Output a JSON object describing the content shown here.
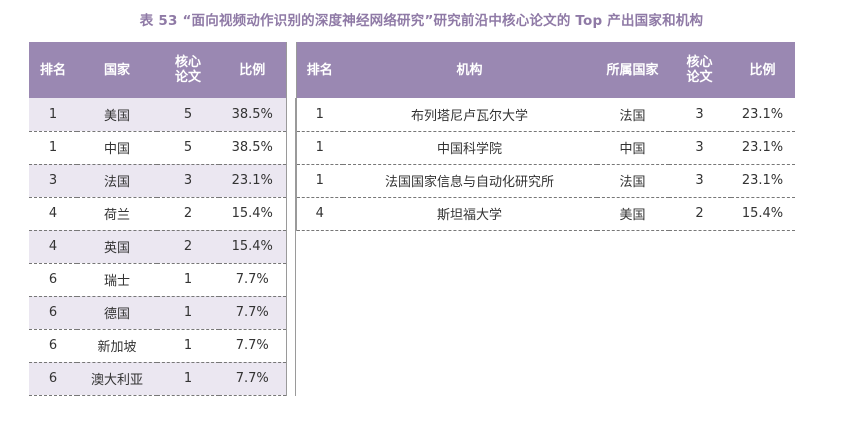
{
  "title": "表 53 “面向视频动作识别的深度神经网络研究”研究前沿中核心论文的 Top 产出国家和机构",
  "country_table": {
    "headers": [
      "排名",
      "国家",
      "核心论文",
      "比例"
    ],
    "rows": [
      [
        "1",
        "美国",
        "5",
        "38.5%"
      ],
      [
        "1",
        "中国",
        "5",
        "38.5%"
      ],
      [
        "3",
        "法国",
        "3",
        "23.1%"
      ],
      [
        "4",
        "荷兰",
        "2",
        "15.4%"
      ],
      [
        "4",
        "英国",
        "2",
        "15.4%"
      ],
      [
        "6",
        "瑞士",
        "1",
        "7.7%"
      ],
      [
        "6",
        "德国",
        "1",
        "7.7%"
      ],
      [
        "6",
        "新加坡",
        "1",
        "7.7%"
      ],
      [
        "6",
        "澳大利亚",
        "1",
        "7.7%"
      ]
    ]
  },
  "institution_table": {
    "headers": [
      "排名",
      "机构",
      "所属国家",
      "核心论文",
      "比例"
    ],
    "rows": [
      [
        "1",
        "布列塔尼卢瓦尔大学",
        "法国",
        "3",
        "23.1%"
      ],
      [
        "1",
        "中国科学院",
        "中国",
        "3",
        "23.1%"
      ],
      [
        "1",
        "法国国家信息与自动化研究所",
        "法国",
        "3",
        "23.1%"
      ],
      [
        "4",
        "斯坦福大学",
        "美国",
        "2",
        "15.4%"
      ]
    ]
  },
  "colors": {
    "header_bg": "#9a88b2",
    "row_shade": "#ebe7f1",
    "title": "#8f7aa6"
  }
}
